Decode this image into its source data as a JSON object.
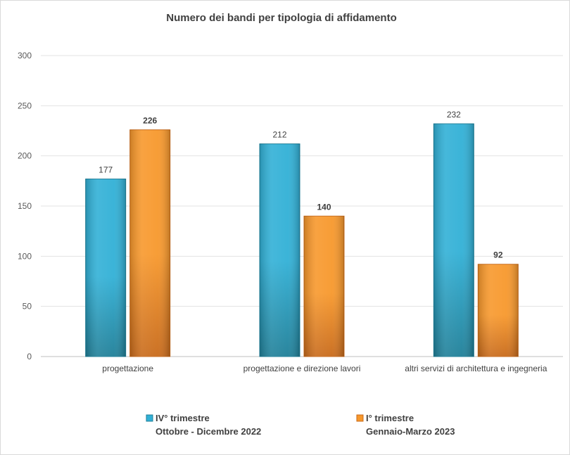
{
  "chart_data": {
    "type": "bar",
    "title": "Numero dei bandi per tipologia di affidamento",
    "categories": [
      "progettazione",
      "progettazione e direzione lavori",
      "altri servizi di architettura e ingegneria"
    ],
    "ylim": [
      0,
      300
    ],
    "yticks": [
      0,
      50,
      100,
      150,
      200,
      250,
      300
    ],
    "grid": true,
    "legend_position": "bottom",
    "series": [
      {
        "name": "IV° trimestre",
        "name_line2": "Ottobre - Dicembre 2022",
        "values": [
          177,
          212,
          232
        ],
        "color": "#31b0d6",
        "color_dark": "#1f7f98",
        "label_bold": false
      },
      {
        "name": "I° trimestre",
        "name_line2": "Gennaio-Marzo 2023",
        "values": [
          226,
          140,
          92
        ],
        "color": "#f7982c",
        "color_dark": "#c86a1a",
        "label_bold": true
      }
    ]
  }
}
